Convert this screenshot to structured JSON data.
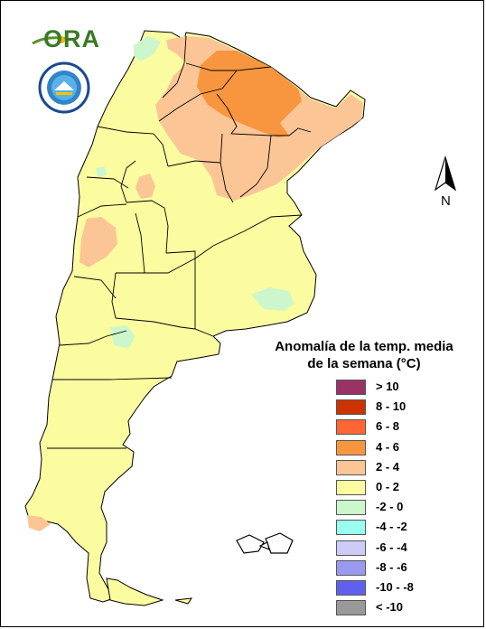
{
  "logo": {
    "text": "ORA"
  },
  "seal": {
    "alt": "Servicio Meteorológico Nacional Argentina seal"
  },
  "north_arrow": {
    "label": "N"
  },
  "legend": {
    "title_line1": "Anomalía de la temp. media",
    "title_line2": "de la semana (°C)",
    "items": [
      {
        "label": "> 10",
        "color": "#993366"
      },
      {
        "label": "8 - 10",
        "color": "#cc3300"
      },
      {
        "label": "6 - 8",
        "color": "#ff6633"
      },
      {
        "label": "4 - 6",
        "color": "#f7963f"
      },
      {
        "label": "2 - 4",
        "color": "#fbc595"
      },
      {
        "label": "0 - 2",
        "color": "#fbfba0"
      },
      {
        "label": "-2 - 0",
        "color": "#ccf7cc"
      },
      {
        "label": "-4 - -2",
        "color": "#99ffee"
      },
      {
        "label": "-6 - -4",
        "color": "#ccccf7"
      },
      {
        "label": "-8 - -6",
        "color": "#9999f0"
      },
      {
        "label": "-10 - -8",
        "color": "#6060ee"
      },
      {
        "label": "< -10",
        "color": "#999999"
      }
    ]
  },
  "colors": {
    "land_base": "#fbfba0",
    "border": "#000000"
  }
}
